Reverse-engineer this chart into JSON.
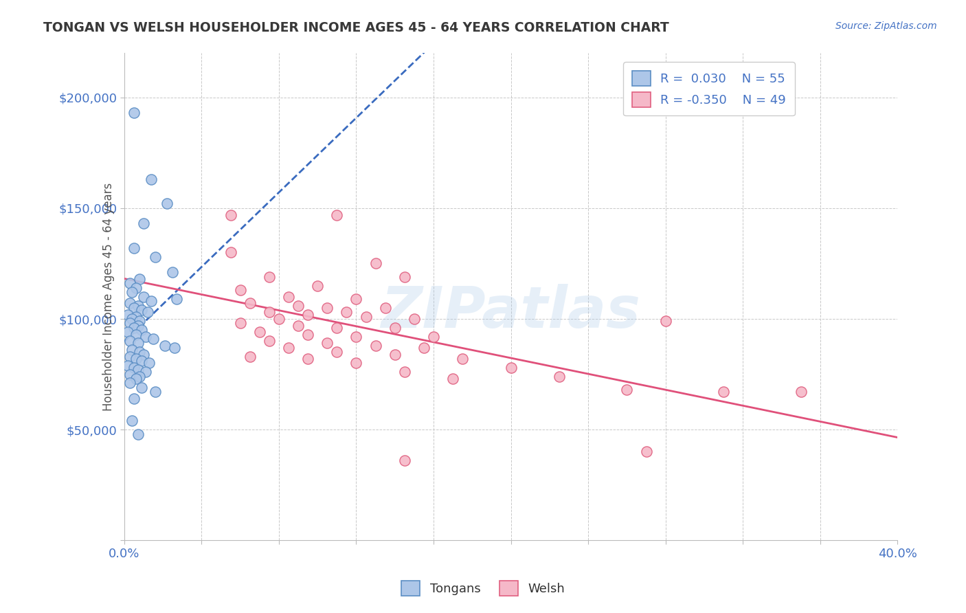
{
  "title": "TONGAN VS WELSH HOUSEHOLDER INCOME AGES 45 - 64 YEARS CORRELATION CHART",
  "source": "Source: ZipAtlas.com",
  "ylabel": "Householder Income Ages 45 - 64 years",
  "xlim": [
    0.0,
    0.4
  ],
  "ylim": [
    0,
    220000
  ],
  "yticks": [
    0,
    50000,
    100000,
    150000,
    200000
  ],
  "ytick_labels": [
    "",
    "$50,000",
    "$100,000",
    "$150,000",
    "$200,000"
  ],
  "tongan_color": "#adc6e8",
  "tongan_edge_color": "#5b8ec4",
  "welsh_color": "#f5b8c8",
  "welsh_edge_color": "#e06080",
  "tongan_line_color": "#3a6bbf",
  "welsh_line_color": "#e0507a",
  "bg_color": "#ffffff",
  "grid_color": "#c8c8c8",
  "title_color": "#383838",
  "axis_color": "#4472c4",
  "tongan_scatter": [
    [
      0.005,
      193000
    ],
    [
      0.014,
      163000
    ],
    [
      0.022,
      152000
    ],
    [
      0.01,
      143000
    ],
    [
      0.005,
      132000
    ],
    [
      0.016,
      128000
    ],
    [
      0.025,
      121000
    ],
    [
      0.008,
      118000
    ],
    [
      0.003,
      116000
    ],
    [
      0.006,
      114000
    ],
    [
      0.004,
      112000
    ],
    [
      0.01,
      110000
    ],
    [
      0.014,
      108000
    ],
    [
      0.003,
      107000
    ],
    [
      0.007,
      106000
    ],
    [
      0.005,
      105000
    ],
    [
      0.009,
      104000
    ],
    [
      0.012,
      103000
    ],
    [
      0.002,
      102000
    ],
    [
      0.006,
      101000
    ],
    [
      0.004,
      100000
    ],
    [
      0.008,
      99000
    ],
    [
      0.003,
      98000
    ],
    [
      0.007,
      97000
    ],
    [
      0.005,
      96000
    ],
    [
      0.009,
      95000
    ],
    [
      0.002,
      94000
    ],
    [
      0.006,
      93000
    ],
    [
      0.011,
      92000
    ],
    [
      0.015,
      91000
    ],
    [
      0.003,
      90000
    ],
    [
      0.007,
      89000
    ],
    [
      0.021,
      88000
    ],
    [
      0.026,
      87000
    ],
    [
      0.004,
      86000
    ],
    [
      0.008,
      85000
    ],
    [
      0.01,
      84000
    ],
    [
      0.003,
      83000
    ],
    [
      0.006,
      82000
    ],
    [
      0.009,
      81000
    ],
    [
      0.013,
      80000
    ],
    [
      0.002,
      79000
    ],
    [
      0.005,
      78000
    ],
    [
      0.007,
      77000
    ],
    [
      0.011,
      76000
    ],
    [
      0.003,
      75000
    ],
    [
      0.008,
      74000
    ],
    [
      0.006,
      73000
    ],
    [
      0.003,
      71000
    ],
    [
      0.009,
      69000
    ],
    [
      0.016,
      67000
    ],
    [
      0.005,
      64000
    ],
    [
      0.004,
      54000
    ],
    [
      0.007,
      48000
    ],
    [
      0.027,
      109000
    ]
  ],
  "welsh_scatter": [
    [
      0.055,
      147000
    ],
    [
      0.11,
      147000
    ],
    [
      0.055,
      130000
    ],
    [
      0.13,
      125000
    ],
    [
      0.075,
      119000
    ],
    [
      0.145,
      119000
    ],
    [
      0.1,
      115000
    ],
    [
      0.06,
      113000
    ],
    [
      0.085,
      110000
    ],
    [
      0.12,
      109000
    ],
    [
      0.065,
      107000
    ],
    [
      0.09,
      106000
    ],
    [
      0.105,
      105000
    ],
    [
      0.135,
      105000
    ],
    [
      0.075,
      103000
    ],
    [
      0.115,
      103000
    ],
    [
      0.095,
      102000
    ],
    [
      0.125,
      101000
    ],
    [
      0.08,
      100000
    ],
    [
      0.15,
      100000
    ],
    [
      0.06,
      98000
    ],
    [
      0.09,
      97000
    ],
    [
      0.11,
      96000
    ],
    [
      0.14,
      96000
    ],
    [
      0.07,
      94000
    ],
    [
      0.095,
      93000
    ],
    [
      0.12,
      92000
    ],
    [
      0.16,
      92000
    ],
    [
      0.075,
      90000
    ],
    [
      0.105,
      89000
    ],
    [
      0.13,
      88000
    ],
    [
      0.085,
      87000
    ],
    [
      0.155,
      87000
    ],
    [
      0.11,
      85000
    ],
    [
      0.14,
      84000
    ],
    [
      0.065,
      83000
    ],
    [
      0.095,
      82000
    ],
    [
      0.175,
      82000
    ],
    [
      0.12,
      80000
    ],
    [
      0.2,
      78000
    ],
    [
      0.145,
      76000
    ],
    [
      0.225,
      74000
    ],
    [
      0.17,
      73000
    ],
    [
      0.26,
      68000
    ],
    [
      0.31,
      67000
    ],
    [
      0.35,
      67000
    ],
    [
      0.145,
      36000
    ],
    [
      0.27,
      40000
    ],
    [
      0.28,
      99000
    ]
  ]
}
